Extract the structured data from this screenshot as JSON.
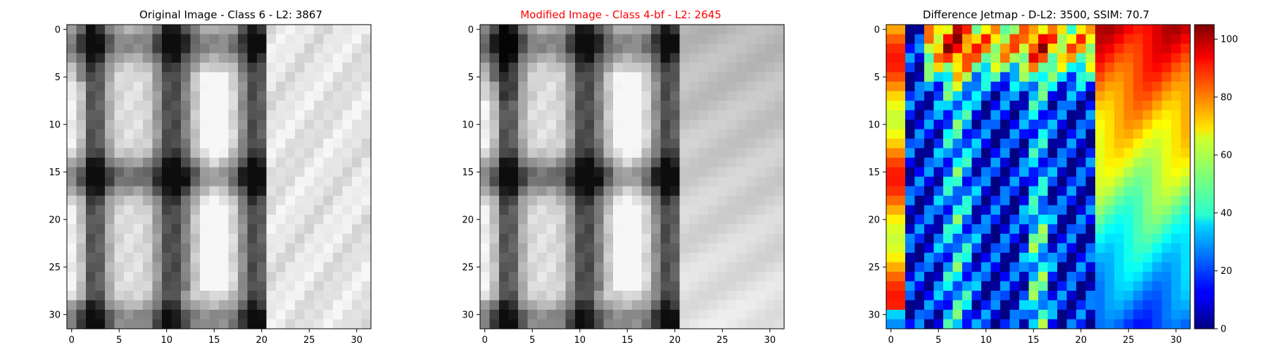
{
  "colors": {
    "modified_title": "#ff0000",
    "default_text": "#000000",
    "grayscale_dark": "#101010",
    "grayscale_light": "#f4f4f4"
  },
  "chart_data": [
    {
      "type": "heatmap",
      "title": "Original Image - Class 6 - L2: 3867",
      "colormap": "gray",
      "grid": false,
      "shape": [
        32,
        32
      ],
      "xlim": [
        -0.5,
        31.5
      ],
      "ylim": [
        31.5,
        -0.5
      ],
      "xticks": [
        0,
        5,
        10,
        15,
        20,
        25,
        30
      ],
      "yticks": [
        0,
        5,
        10,
        15,
        20,
        25,
        30
      ],
      "xlabel": "",
      "ylabel": ""
    },
    {
      "type": "heatmap",
      "title": "Modified Image - Class 4-bf - L2: 2645",
      "title_color": "#ff0000",
      "colormap": "gray",
      "grid": false,
      "shape": [
        32,
        32
      ],
      "xlim": [
        -0.5,
        31.5
      ],
      "ylim": [
        31.5,
        -0.5
      ],
      "xticks": [
        0,
        5,
        10,
        15,
        20,
        25,
        30
      ],
      "yticks": [
        0,
        5,
        10,
        15,
        20,
        25,
        30
      ],
      "xlabel": "",
      "ylabel": ""
    },
    {
      "type": "heatmap",
      "title": "Difference Jetmap - D-L2: 3500, SSIM: 70.7",
      "colormap": "jet",
      "grid": false,
      "shape": [
        32,
        32
      ],
      "xlim": [
        -0.5,
        31.5
      ],
      "ylim": [
        31.5,
        -0.5
      ],
      "xticks": [
        0,
        5,
        10,
        15,
        20,
        25,
        30
      ],
      "yticks": [
        0,
        5,
        10,
        15,
        20,
        25,
        30
      ],
      "xlabel": "",
      "ylabel": "",
      "colorbar": {
        "min": 0,
        "max": 105,
        "ticks": [
          0,
          20,
          40,
          60,
          80,
          100
        ]
      }
    }
  ]
}
